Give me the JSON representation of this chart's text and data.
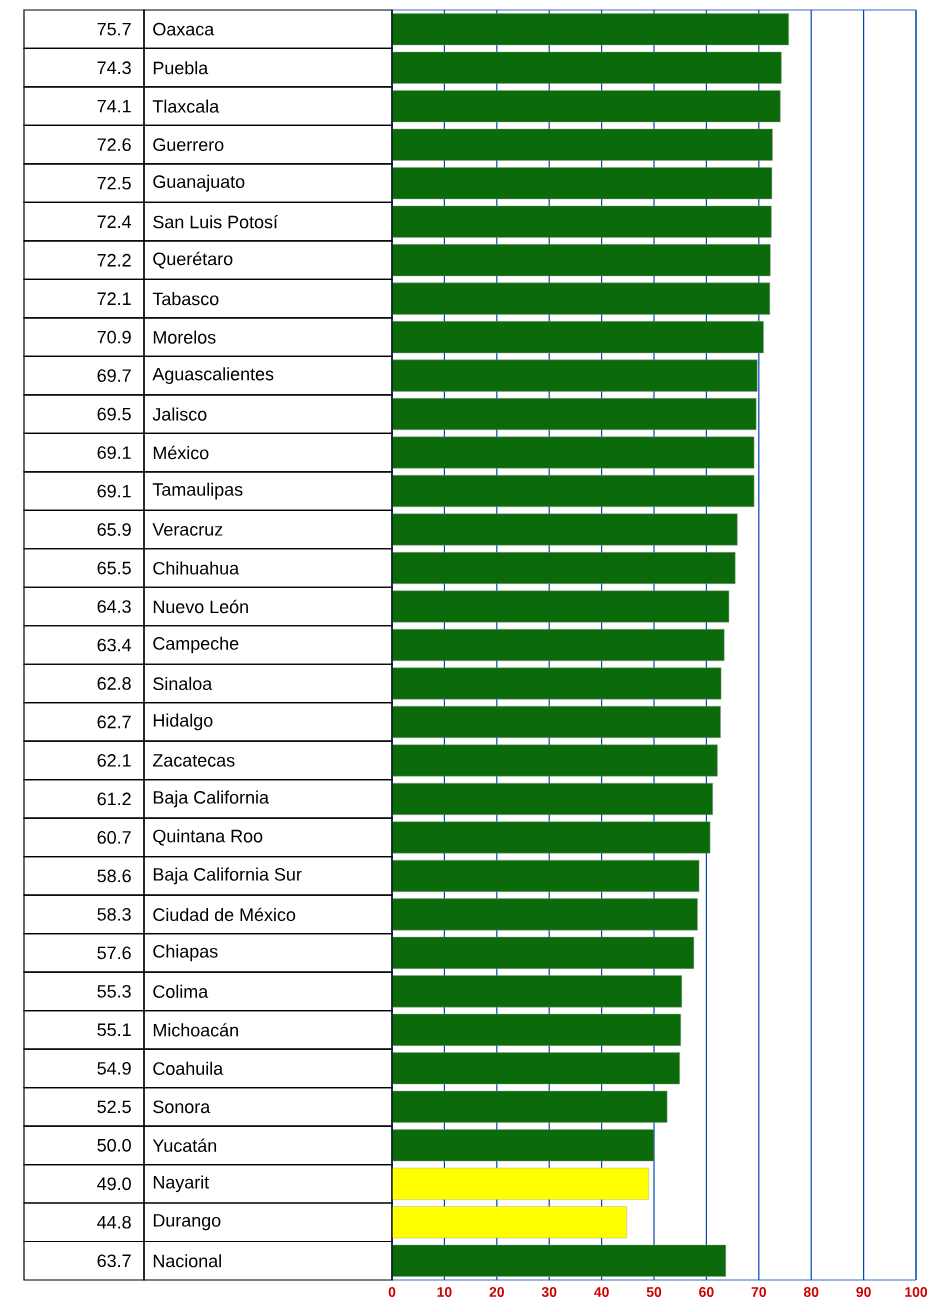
{
  "chart_data": {
    "type": "bar",
    "orientation": "horizontal",
    "categories": [
      "Oaxaca",
      "Puebla",
      "Tlaxcala",
      "Guerrero",
      "Guanajuato",
      "San Luis Potosí",
      "Querétaro",
      "Tabasco",
      "Morelos",
      "Aguascalientes",
      "Jalisco",
      "México",
      "Tamaulipas",
      "Veracruz",
      "Chihuahua",
      "Nuevo León",
      "Campeche",
      "Sinaloa",
      "Hidalgo",
      "Zacatecas",
      "Baja California",
      "Quintana Roo",
      "Baja California Sur",
      "Ciudad de México",
      "Chiapas",
      "Colima",
      "Michoacán",
      "Coahuila",
      "Sonora",
      "Yucatán",
      "Nayarit",
      "Durango",
      "Nacional"
    ],
    "values": [
      75.7,
      74.3,
      74.1,
      72.6,
      72.5,
      72.4,
      72.2,
      72.1,
      70.9,
      69.7,
      69.5,
      69.1,
      69.1,
      65.9,
      65.5,
      64.3,
      63.4,
      62.8,
      62.7,
      62.1,
      61.2,
      60.7,
      58.6,
      58.3,
      57.6,
      55.3,
      55.1,
      54.9,
      52.5,
      50.0,
      49.0,
      44.8,
      63.7
    ],
    "value_labels": [
      "75.7",
      "74.3",
      "74.1",
      "72.6",
      "72.5",
      "72.4",
      "72.2",
      "72.1",
      "70.9",
      "69.7",
      "69.5",
      "69.1",
      "69.1",
      "65.9",
      "65.5",
      "64.3",
      "63.4",
      "62.8",
      "62.7",
      "62.1",
      "61.2",
      "60.7",
      "58.6",
      "58.3",
      "57.6",
      "55.3",
      "55.1",
      "54.9",
      "52.5",
      "50.0",
      "49.0",
      "44.8",
      "63.7"
    ],
    "colors": [
      "#0b6b0b",
      "#0b6b0b",
      "#0b6b0b",
      "#0b6b0b",
      "#0b6b0b",
      "#0b6b0b",
      "#0b6b0b",
      "#0b6b0b",
      "#0b6b0b",
      "#0b6b0b",
      "#0b6b0b",
      "#0b6b0b",
      "#0b6b0b",
      "#0b6b0b",
      "#0b6b0b",
      "#0b6b0b",
      "#0b6b0b",
      "#0b6b0b",
      "#0b6b0b",
      "#0b6b0b",
      "#0b6b0b",
      "#0b6b0b",
      "#0b6b0b",
      "#0b6b0b",
      "#0b6b0b",
      "#0b6b0b",
      "#0b6b0b",
      "#0b6b0b",
      "#0b6b0b",
      "#0b6b0b",
      "#ffff00",
      "#ffff00",
      "#0b6b0b"
    ],
    "xlim": [
      0,
      100
    ],
    "xticks": [
      0,
      10,
      20,
      30,
      40,
      50,
      60,
      70,
      80,
      90,
      100
    ],
    "grid": "x"
  }
}
